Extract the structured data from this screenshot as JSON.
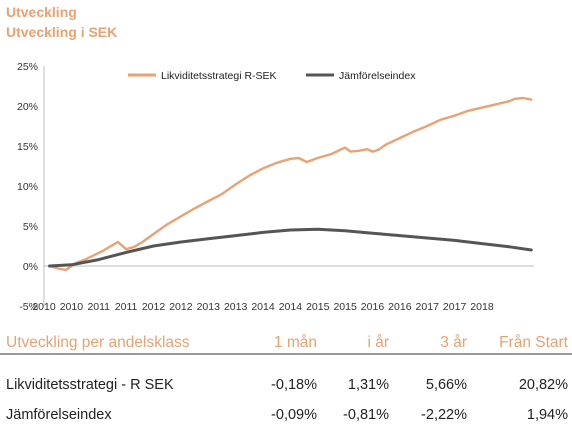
{
  "header": {
    "title": "Utveckling",
    "subtitle": "Utveckling i SEK"
  },
  "colors": {
    "accent": "#e8a273",
    "fund": "#e8a273",
    "index": "#555555"
  },
  "chart_data": {
    "type": "line",
    "ylim": [
      -5,
      25
    ],
    "yticks": [
      -5,
      0,
      5,
      10,
      15,
      20,
      25
    ],
    "ytick_labels": [
      "-5%",
      "0%",
      "5%",
      "10%",
      "15%",
      "20%",
      "25%"
    ],
    "xticks": [
      2010.0,
      2010.5,
      2011.0,
      2011.5,
      2012.0,
      2012.5,
      2013.0,
      2013.5,
      2014.0,
      2014.5,
      2015.0,
      2015.5,
      2016.0,
      2016.5,
      2017.0,
      2017.5,
      2018.0
    ],
    "xtick_labels": [
      "2010",
      "2010",
      "2011",
      "2011",
      "2012",
      "2012",
      "2013",
      "2013",
      "2014",
      "2014",
      "2015",
      "2015",
      "2016",
      "2016",
      "2017",
      "2017",
      "2018"
    ],
    "xlim": [
      2010.0,
      2018.95
    ],
    "legend_position": "top",
    "grid": false,
    "series": [
      {
        "name": "Likviditetsstrategi R-SEK",
        "color": "#e8a273",
        "x": [
          2010.1,
          2010.25,
          2010.4,
          2010.5,
          2010.6,
          2010.75,
          2010.9,
          2011.05,
          2011.15,
          2011.25,
          2011.35,
          2011.5,
          2011.65,
          2011.8,
          2012.0,
          2012.25,
          2012.5,
          2012.75,
          2013.0,
          2013.25,
          2013.5,
          2013.75,
          2014.0,
          2014.25,
          2014.5,
          2014.65,
          2014.8,
          2015.0,
          2015.25,
          2015.5,
          2015.6,
          2015.75,
          2015.9,
          2016.0,
          2016.1,
          2016.25,
          2016.5,
          2016.75,
          2017.0,
          2017.25,
          2017.5,
          2017.75,
          2018.0,
          2018.25,
          2018.5,
          2018.6,
          2018.75,
          2018.9
        ],
        "y": [
          0.0,
          -0.3,
          -0.5,
          0.0,
          0.4,
          0.8,
          1.3,
          1.8,
          2.2,
          2.6,
          3.0,
          2.1,
          2.4,
          3.0,
          4.0,
          5.2,
          6.2,
          7.2,
          8.1,
          9.0,
          10.2,
          11.3,
          12.2,
          12.9,
          13.4,
          13.5,
          13.0,
          13.5,
          14.0,
          14.8,
          14.3,
          14.4,
          14.6,
          14.3,
          14.5,
          15.2,
          16.0,
          16.8,
          17.5,
          18.3,
          18.8,
          19.4,
          19.8,
          20.2,
          20.6,
          20.9,
          21.0,
          20.8
        ]
      },
      {
        "name": "Jämförelseindex",
        "color": "#555555",
        "x": [
          2010.1,
          2010.5,
          2011.0,
          2011.5,
          2012.0,
          2012.5,
          2013.0,
          2013.5,
          2014.0,
          2014.5,
          2015.0,
          2015.5,
          2016.0,
          2016.5,
          2017.0,
          2017.5,
          2018.0,
          2018.5,
          2018.9
        ],
        "y": [
          0.0,
          0.15,
          0.8,
          1.7,
          2.5,
          3.0,
          3.4,
          3.8,
          4.2,
          4.5,
          4.6,
          4.4,
          4.1,
          3.8,
          3.5,
          3.2,
          2.8,
          2.4,
          2.0
        ]
      }
    ]
  },
  "table": {
    "headers": [
      "Utveckling per andelsklass",
      "1 mån",
      "i år",
      "3 år",
      "Från Start"
    ],
    "rows": [
      [
        "Likviditetsstrategi - R SEK",
        "-0,18%",
        "1,31%",
        "5,66%",
        "20,82%"
      ],
      [
        "Jämförelseindex",
        "-0,09%",
        "-0,81%",
        "-2,22%",
        "1,94%"
      ]
    ]
  }
}
